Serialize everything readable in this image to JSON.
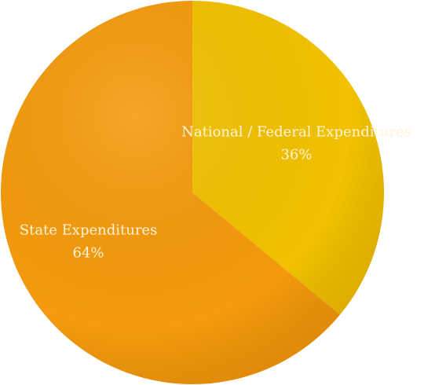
{
  "chart_data": {
    "type": "pie",
    "categories": [
      "National / Federal Expenditures",
      "State Expenditures"
    ],
    "values": [
      36,
      64
    ],
    "value_labels": [
      "36%",
      "64%"
    ],
    "colors": [
      "#f2c100",
      "#f59a0c"
    ]
  }
}
